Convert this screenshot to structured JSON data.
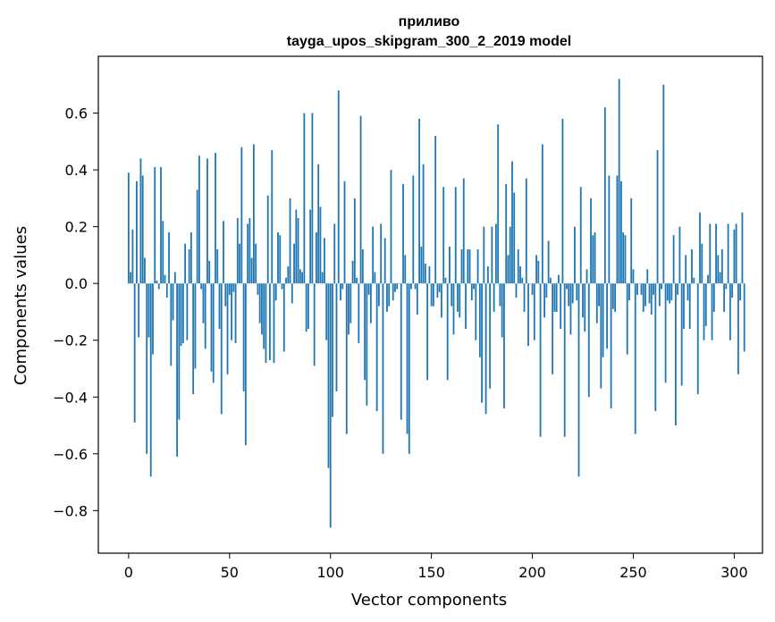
{
  "chart_data": {
    "type": "bar",
    "title": "приливо",
    "subtitle": "tayga_upos_skipgram_300_2_2019 model",
    "xlabel": "Vector components",
    "ylabel": "Components values",
    "xlim": [
      -15,
      314
    ],
    "ylim": [
      -0.95,
      0.8
    ],
    "xticks": [
      0,
      50,
      100,
      150,
      200,
      250,
      300
    ],
    "xtick_labels": [
      "0",
      "50",
      "100",
      "150",
      "200",
      "250",
      "300"
    ],
    "yticks": [
      -0.8,
      -0.6,
      -0.4,
      -0.2,
      0.0,
      0.2,
      0.4,
      0.6
    ],
    "ytick_labels": [
      "−0.8",
      "−0.6",
      "−0.4",
      "−0.2",
      "0.0",
      "0.2",
      "0.4",
      "0.6"
    ],
    "bar_color": "#1f77b4",
    "grid": false,
    "values": [
      0.39,
      0.04,
      0.19,
      -0.49,
      0.36,
      -0.19,
      0.44,
      0.38,
      0.09,
      -0.6,
      -0.19,
      -0.68,
      -0.25,
      0.41,
      0.01,
      -0.02,
      0.41,
      0.22,
      0.03,
      -0.05,
      0.18,
      -0.29,
      -0.13,
      0.04,
      -0.61,
      -0.48,
      -0.22,
      -0.21,
      0.14,
      -0.2,
      0.12,
      0.18,
      -0.39,
      -0.3,
      0.33,
      0.45,
      -0.02,
      -0.14,
      -0.23,
      0.44,
      0.08,
      -0.31,
      -0.35,
      0.46,
      0.12,
      -0.16,
      -0.46,
      0.22,
      -0.08,
      -0.32,
      -0.04,
      -0.2,
      -0.03,
      -0.21,
      0.23,
      0.14,
      0.48,
      -0.38,
      -0.57,
      0.21,
      0.23,
      0.09,
      0.49,
      0.14,
      -0.04,
      -0.14,
      -0.18,
      -0.23,
      -0.28,
      0.31,
      -0.27,
      0.47,
      -0.28,
      -0.06,
      0.18,
      0.17,
      -0.02,
      -0.24,
      0.02,
      0.06,
      0.3,
      -0.07,
      0.14,
      0.26,
      0.23,
      0.05,
      0.04,
      0.6,
      -0.17,
      -0.16,
      0.26,
      0.6,
      -0.29,
      0.18,
      0.42,
      0.27,
      0.04,
      0.16,
      -0.2,
      -0.65,
      -0.86,
      -0.47,
      0.21,
      -0.38,
      0.68,
      -0.06,
      -0.02,
      0.36,
      -0.53,
      -0.18,
      -0.14,
      0.08,
      0.3,
      0.02,
      -0.21,
      0.59,
      0.12,
      -0.34,
      -0.43,
      -0.04,
      -0.14,
      0.2,
      0.04,
      -0.45,
      -0.08,
      0.21,
      -0.6,
      0.16,
      -0.1,
      -0.08,
      0.4,
      -0.06,
      -0.03,
      -0.02,
      0.0,
      -0.48,
      0.35,
      0.1,
      -0.53,
      -0.6,
      -0.02,
      0.38,
      -0.02,
      -0.11,
      0.58,
      0.13,
      0.42,
      0.07,
      -0.34,
      0.06,
      -0.08,
      -0.08,
      0.52,
      -0.05,
      -0.03,
      -0.12,
      0.34,
      0.02,
      -0.34,
      0.13,
      -0.08,
      -0.18,
      0.34,
      -0.1,
      -0.12,
      0.12,
      0.37,
      -0.16,
      0.12,
      0.12,
      -0.06,
      -0.02,
      -0.2,
      0.12,
      -0.26,
      -0.42,
      0.2,
      -0.46,
      0.06,
      -0.37,
      0.2,
      -0.1,
      0.21,
      0.56,
      -0.08,
      -0.19,
      -0.44,
      0.35,
      0.1,
      0.2,
      0.43,
      0.32,
      -0.05,
      0.12,
      0.06,
      0.02,
      -0.1,
      0.37,
      -0.22,
      0.0,
      -0.04,
      -0.2,
      0.1,
      0.08,
      -0.54,
      0.49,
      -0.12,
      -0.05,
      0.15,
      0.02,
      -0.32,
      -0.1,
      -0.1,
      0.03,
      -0.16,
      0.58,
      -0.54,
      -0.02,
      -0.08,
      -0.18,
      -0.07,
      0.2,
      -0.06,
      -0.68,
      0.34,
      -0.12,
      -0.17,
      0.05,
      -0.4,
      0.3,
      0.17,
      0.18,
      -0.14,
      -0.08,
      -0.37,
      -0.26,
      0.62,
      -0.23,
      0.38,
      -0.44,
      -0.09,
      -0.1,
      0.38,
      0.72,
      0.36,
      0.18,
      0.17,
      -0.25,
      -0.06,
      0.3,
      0.05,
      -0.53,
      -0.04,
      0.0,
      -0.04,
      -0.1,
      -0.08,
      0.05,
      -0.07,
      -0.11,
      -0.04,
      -0.45,
      0.47,
      -0.08,
      -0.02,
      0.7,
      -0.35,
      -0.06,
      -0.07,
      -0.06,
      0.17,
      -0.5,
      -0.04,
      0.2,
      -0.36,
      -0.16,
      0.1,
      -0.06,
      -0.16,
      0.12,
      0.02,
      0.0,
      -0.39,
      0.25,
      0.14,
      -0.2,
      -0.15,
      0.03,
      0.21,
      -0.2,
      -0.1,
      0.21,
      0.1,
      0.04,
      0.12,
      -0.1,
      -0.02,
      0.21,
      -0.2,
      -0.05,
      0.19,
      0.21,
      -0.32,
      -0.06,
      0.25,
      -0.24
    ]
  }
}
